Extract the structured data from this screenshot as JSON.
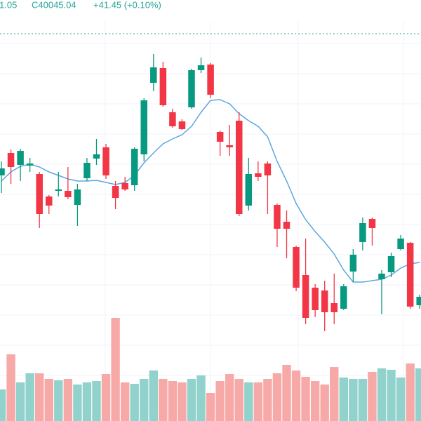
{
  "chart_data": {
    "type": "candlestick",
    "header": {
      "left": "1.05",
      "close": "C40045.04",
      "change": "+41.45 (+0.10%)"
    },
    "ylim": [
      0,
      600
    ],
    "y2lim": [
      0,
      600
    ],
    "up_color": "#089981",
    "down_color": "#f23645",
    "volume_up_color": "#92d2cc",
    "volume_down_color": "#f7a9a7",
    "ma_color": "#5ba7e0",
    "series": {
      "open": [
        350,
        382,
        365,
        364,
        352,
        320,
        328,
        328,
        308,
        346,
        374,
        390,
        335,
        339,
        336,
        380,
        482,
        503,
        440,
        427,
        447,
        500,
        508,
        412,
        393,
        428,
        307,
        353,
        367,
        308,
        284,
        248,
        208,
        190,
        186,
        168,
        160,
        213,
        255,
        288,
        202,
        212,
        245,
        254,
        165
      ],
      "high": [
        370,
        387,
        388,
        375,
        355,
        322,
        355,
        362,
        338,
        375,
        402,
        395,
        342,
        348,
        390,
        460,
        523,
        512,
        445,
        430,
        502,
        518,
        510,
        414,
        422,
        440,
        375,
        370,
        370,
        310,
        300,
        250,
        260,
        195,
        200,
        210,
        195,
        245,
        290,
        290,
        215,
        240,
        265,
        255,
        180
      ],
      "low": [
        325,
        338,
        342,
        355,
        275,
        295,
        320,
        316,
        278,
        342,
        365,
        345,
        302,
        328,
        328,
        370,
        470,
        448,
        418,
        415,
        445,
        496,
        460,
        378,
        378,
        292,
        300,
        342,
        295,
        248,
        232,
        185,
        138,
        148,
        128,
        138,
        158,
        198,
        243,
        250,
        152,
        205,
        243,
        160,
        160
      ],
      "close": [
        360,
        362,
        385,
        367,
        295,
        307,
        330,
        319,
        330,
        368,
        380,
        350,
        318,
        330,
        388,
        457,
        504,
        450,
        420,
        416,
        500,
        507,
        465,
        398,
        390,
        295,
        352,
        348,
        350,
        274,
        274,
        190,
        147,
        158,
        155,
        155,
        192,
        237,
        282,
        275,
        210,
        235,
        260,
        163,
        177
      ],
      "ma": [
        342,
        355,
        363,
        366,
        362,
        355,
        350,
        345,
        342,
        342,
        343,
        340,
        337,
        340,
        350,
        368,
        382,
        395,
        402,
        408,
        420,
        440,
        457,
        458,
        452,
        438,
        428,
        420,
        405,
        370,
        342,
        310,
        287,
        270,
        255,
        238,
        215,
        198,
        198,
        200,
        202,
        208,
        218,
        224,
        226
      ],
      "volume": [
        45,
        95,
        55,
        68,
        68,
        60,
        58,
        60,
        52,
        55,
        57,
        67,
        147,
        55,
        53,
        60,
        72,
        60,
        57,
        55,
        60,
        65,
        40,
        57,
        67,
        60,
        55,
        55,
        60,
        68,
        80,
        72,
        63,
        57,
        52,
        77,
        62,
        60,
        60,
        70,
        75,
        73,
        62,
        82,
        75
      ]
    }
  }
}
